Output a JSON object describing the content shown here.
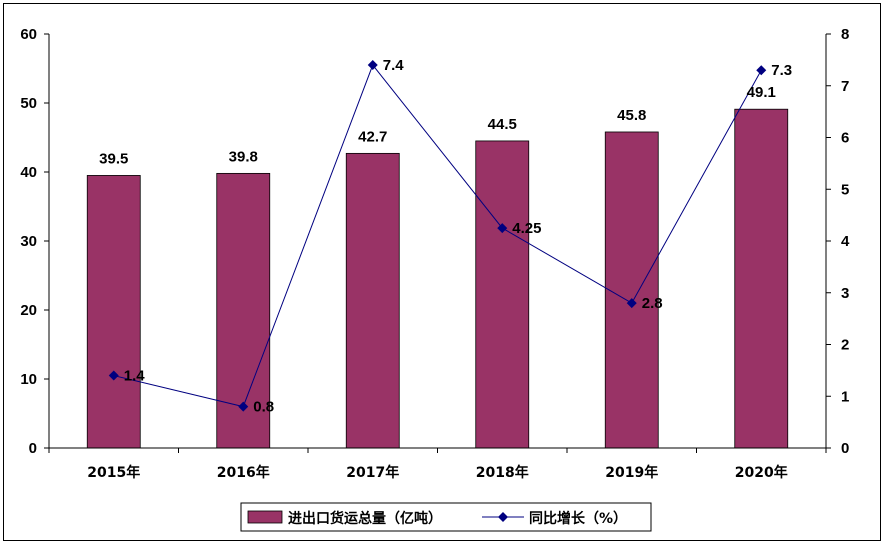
{
  "chart_data": {
    "type": "bar",
    "categories": [
      "2015年",
      "2016年",
      "2017年",
      "2018年",
      "2019年",
      "2020年"
    ],
    "series": [
      {
        "name": "进出口货运总量（亿吨）",
        "kind": "bar",
        "axis": "left",
        "color": "#993366",
        "values": [
          39.5,
          39.8,
          42.7,
          44.5,
          45.8,
          49.1
        ],
        "labels": [
          "39.5",
          "39.8",
          "42.7",
          "44.5",
          "45.8",
          "49.1"
        ]
      },
      {
        "name": "同比增长（%）",
        "kind": "line",
        "axis": "right",
        "color": "#000080",
        "values": [
          1.4,
          0.8,
          7.4,
          4.25,
          2.8,
          7.3
        ],
        "labels": [
          "1.4",
          "0.8",
          "7.4",
          "4.25",
          "2.8",
          "7.3"
        ]
      }
    ],
    "y_left": {
      "min": 0,
      "max": 60,
      "ticks": [
        "0",
        "10",
        "20",
        "30",
        "40",
        "50",
        "60"
      ]
    },
    "y_right": {
      "min": 0,
      "max": 8,
      "ticks": [
        "0",
        "1",
        "2",
        "3",
        "4",
        "5",
        "6",
        "7",
        "8"
      ]
    },
    "grid": false,
    "legend": "bottom-center"
  }
}
